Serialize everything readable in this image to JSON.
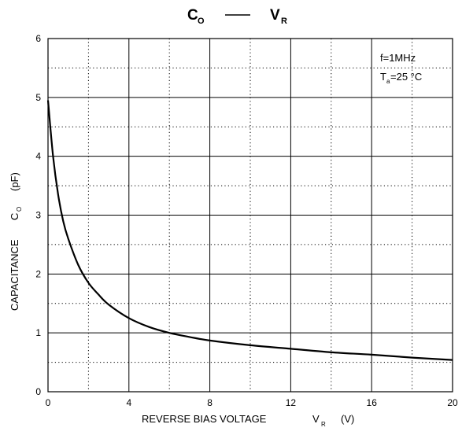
{
  "chart_data": {
    "type": "line",
    "title": {
      "left": "C",
      "left_sub": "O",
      "right": "V",
      "right_sub": "R"
    },
    "xlabel": {
      "text": "REVERSE BIAS VOLTAGE",
      "symbol": "V",
      "symbol_sub": "R",
      "unit": "(V)"
    },
    "ylabel": {
      "text": "CAPACITANCE",
      "symbol": "C",
      "symbol_sub": "O",
      "unit": "(pF)"
    },
    "xlim": [
      0,
      20
    ],
    "ylim": [
      0,
      6
    ],
    "x_ticks": [
      "0",
      "4",
      "8",
      "12",
      "16",
      "20"
    ],
    "y_ticks": [
      "0",
      "1",
      "2",
      "3",
      "4",
      "5",
      "6"
    ],
    "grid": true,
    "annotations": {
      "freq": "f=1MHz",
      "temp_symbol": "T",
      "temp_sub": "a",
      "temp_value": "=25 °C"
    },
    "series": [
      {
        "x": [
          0,
          0.25,
          0.5,
          0.75,
          1.0,
          1.5,
          2.0,
          2.5,
          3.0,
          4.0,
          5.0,
          6.0,
          7.0,
          8.0,
          10.0,
          12.0,
          14.0,
          16.0,
          18.0,
          20.0
        ],
        "y": [
          4.95,
          4.0,
          3.35,
          2.9,
          2.6,
          2.15,
          1.85,
          1.65,
          1.48,
          1.25,
          1.1,
          1.0,
          0.93,
          0.87,
          0.79,
          0.73,
          0.67,
          0.63,
          0.58,
          0.54
        ],
        "color": "#000000"
      }
    ]
  }
}
